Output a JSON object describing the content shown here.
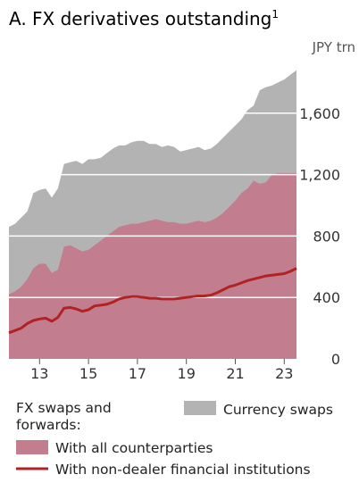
{
  "chart_data": {
    "type": "area",
    "title": "A. FX derivatives outstanding",
    "title_superscript": "1",
    "unit_label": "JPY trn",
    "x": [
      2012.0,
      2012.25,
      2012.5,
      2012.75,
      2013.0,
      2013.25,
      2013.5,
      2013.75,
      2014.0,
      2014.25,
      2014.5,
      2014.75,
      2015.0,
      2015.25,
      2015.5,
      2015.75,
      2016.0,
      2016.25,
      2016.5,
      2016.75,
      2017.0,
      2017.25,
      2017.5,
      2017.75,
      2018.0,
      2018.25,
      2018.5,
      2018.75,
      2019.0,
      2019.25,
      2019.5,
      2019.75,
      2020.0,
      2020.25,
      2020.5,
      2020.75,
      2021.0,
      2021.25,
      2021.5,
      2021.75,
      2022.0,
      2022.25,
      2022.5,
      2022.75,
      2023.0,
      2023.25,
      2023.5,
      2023.75
    ],
    "x_tick_labels": [
      "13",
      "15",
      "17",
      "19",
      "21",
      "23"
    ],
    "x_tick_values": [
      2013.25,
      2015.25,
      2017.25,
      2019.25,
      2021.25,
      2023.25
    ],
    "xlim": [
      2012.0,
      2023.75
    ],
    "ylim": [
      0,
      2000
    ],
    "y_ticks": [
      0,
      400,
      800,
      1200,
      1600
    ],
    "y_tick_labels": [
      "0",
      "400",
      "800",
      "1,200",
      "1,600"
    ],
    "y_axis_position": "right",
    "series": [
      {
        "name": "Currency swaps",
        "kind": "stacked-area",
        "color": "#b3b3b3",
        "values": [
          860,
          880,
          920,
          960,
          1080,
          1100,
          1110,
          1050,
          1110,
          1270,
          1280,
          1290,
          1270,
          1300,
          1300,
          1310,
          1340,
          1370,
          1390,
          1390,
          1410,
          1420,
          1420,
          1400,
          1400,
          1380,
          1390,
          1380,
          1350,
          1360,
          1370,
          1380,
          1360,
          1370,
          1400,
          1440,
          1480,
          1520,
          1560,
          1620,
          1650,
          1750,
          1770,
          1780,
          1800,
          1820,
          1850,
          1880
        ]
      },
      {
        "name": "With all counterparties",
        "kind": "area",
        "color": "#c27d8e",
        "values": [
          420,
          440,
          470,
          520,
          590,
          620,
          620,
          560,
          580,
          730,
          740,
          720,
          700,
          710,
          740,
          770,
          800,
          830,
          860,
          870,
          880,
          880,
          890,
          900,
          910,
          900,
          890,
          890,
          880,
          880,
          890,
          900,
          890,
          900,
          920,
          950,
          990,
          1030,
          1080,
          1110,
          1160,
          1140,
          1150,
          1200,
          1210,
          1210,
          1210,
          1210
        ]
      },
      {
        "name": "With non-dealer financial institutions",
        "kind": "line",
        "color": "#b22222",
        "values": [
          170,
          185,
          200,
          230,
          250,
          260,
          265,
          245,
          270,
          330,
          335,
          325,
          310,
          320,
          345,
          350,
          355,
          370,
          390,
          400,
          405,
          405,
          400,
          395,
          395,
          390,
          390,
          390,
          395,
          400,
          405,
          410,
          410,
          415,
          430,
          450,
          470,
          480,
          495,
          510,
          520,
          530,
          540,
          545,
          550,
          555,
          570,
          590
        ]
      }
    ],
    "legend": {
      "group_label": "FX swaps and forwards:",
      "currency_swaps": "Currency swaps",
      "all_counterparties": "With all counterparties",
      "non_dealer": "With non-dealer financial institutions"
    },
    "grid": "horizontal-white-lines",
    "colors": {
      "currency_swaps": "#b3b3b3",
      "all_counterparties": "#c27d8e",
      "non_dealer_line": "#b22222"
    }
  }
}
